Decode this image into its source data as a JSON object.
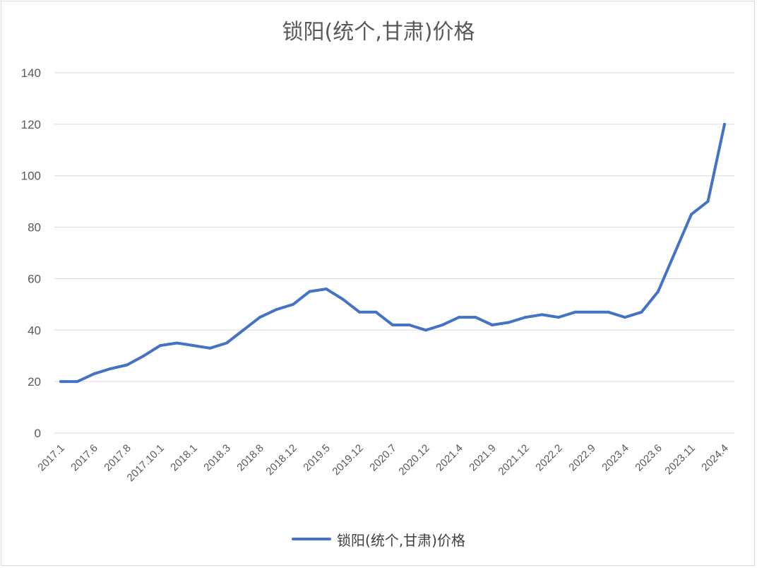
{
  "chart_data": {
    "type": "line",
    "title": "锁阳(统个,甘肃)价格",
    "xlabel": "",
    "ylabel": "",
    "ylim": [
      0,
      140
    ],
    "yticks": [
      "0",
      "20",
      "40",
      "60",
      "80",
      "100",
      "120",
      "140"
    ],
    "grid": true,
    "legend_position": "bottom",
    "x_tick_labels": [
      "2017.1",
      "2017.6",
      "2017.8",
      "2017.10.1",
      "2018.1",
      "2018.3",
      "2018.8",
      "2018.12",
      "2019.5",
      "2019.12",
      "2020.7",
      "2020.12",
      "2021.4",
      "2021.9",
      "2021.12",
      "2022.2",
      "2022.9",
      "2023.4",
      "2023.6",
      "2023.11",
      "2024.4"
    ],
    "x_tick_every": 2,
    "series": [
      {
        "name": "锁阳(统个,甘肃)价格",
        "color": "#4472c4",
        "values": [
          20,
          20,
          23,
          25,
          26.5,
          30,
          34,
          35,
          34,
          33,
          35,
          40,
          45,
          48,
          50,
          55,
          56,
          52,
          47,
          47,
          42,
          42,
          40,
          42,
          45,
          45,
          42,
          43,
          45,
          46,
          45,
          47,
          47,
          47,
          45,
          47,
          55,
          70,
          85,
          90,
          120
        ]
      }
    ]
  }
}
